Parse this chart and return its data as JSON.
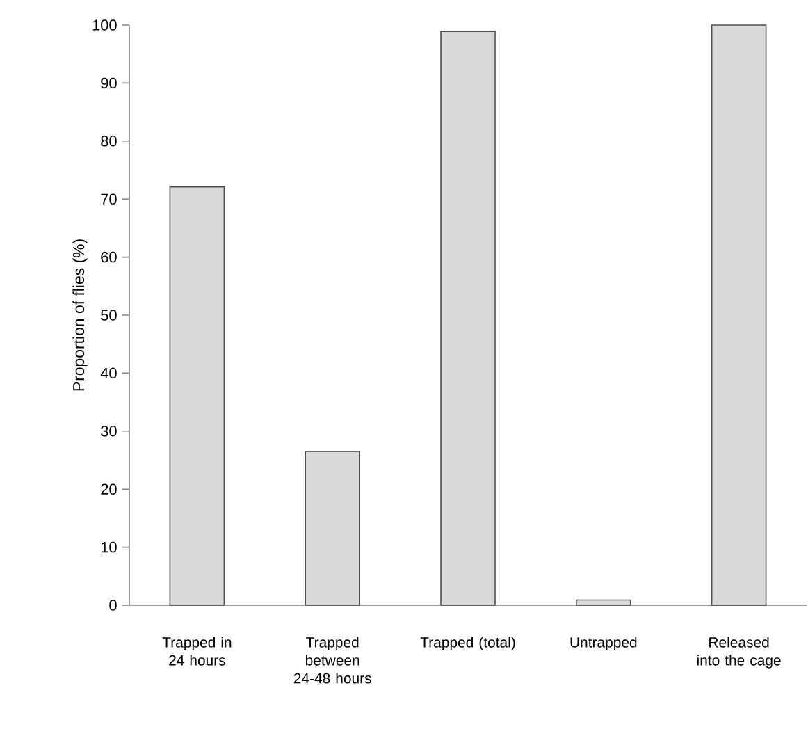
{
  "chart_data": {
    "type": "bar",
    "ylabel": "Proportion of flies  (%)",
    "categories": [
      "Trapped in 24 hours",
      "Trapped between 24-48 hours",
      "Trapped (total)",
      "Untrapped",
      "Released into the cage"
    ],
    "values": [
      72.1,
      26.5,
      98.9,
      0.9,
      100
    ],
    "color": "#d9d9d9",
    "ylim": [
      0,
      100
    ],
    "yticks": [
      0,
      10,
      20,
      30,
      40,
      50,
      60,
      70,
      80,
      90,
      100
    ]
  }
}
